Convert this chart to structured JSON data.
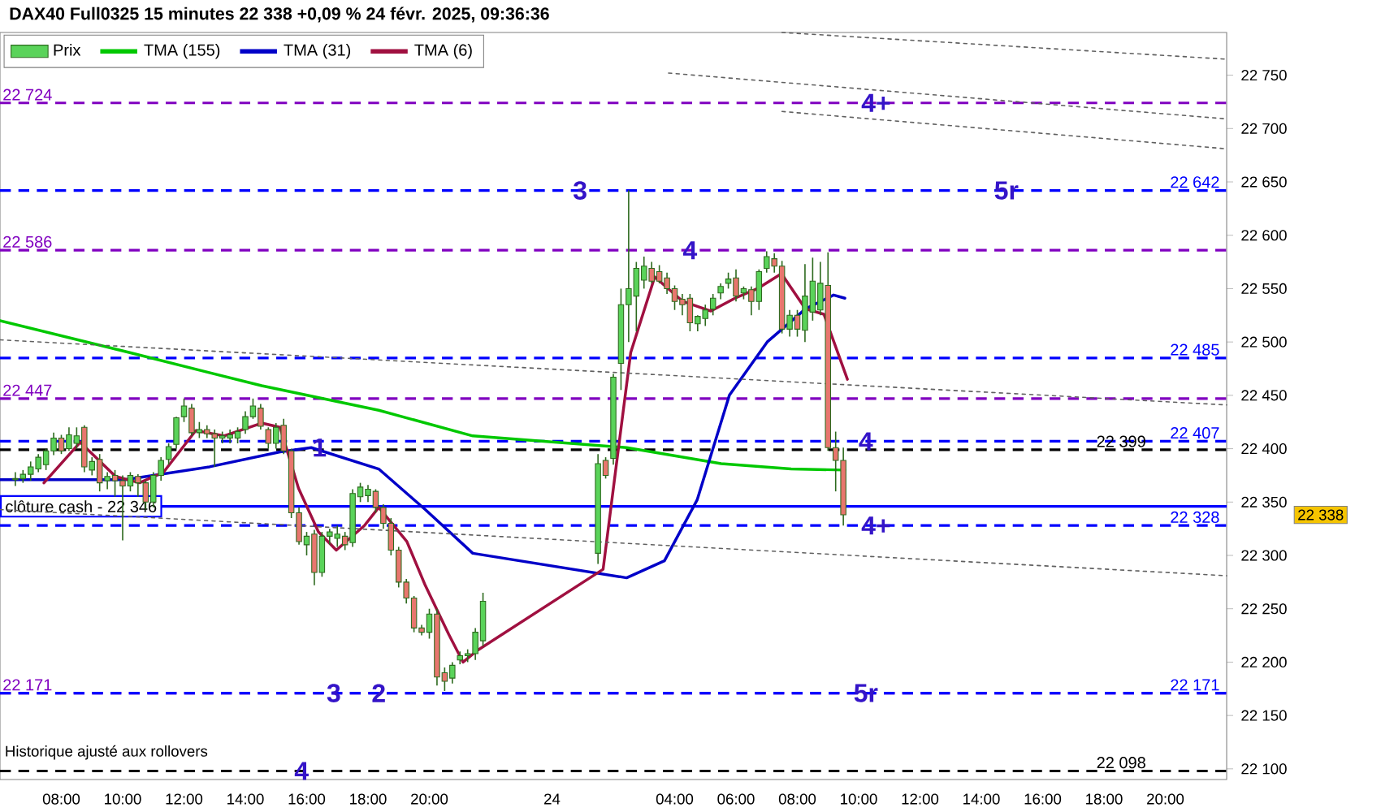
{
  "chart_data": {
    "type": "candlestick",
    "title": "DAX40 Full0325 15 minutes 22 338 +0,09 % 24 févr. 2025, 09:36:36",
    "legend": "top left",
    "xlim": [
      "2025-02-23T06:00",
      "2025-02-24T22:00"
    ],
    "ylim": [
      22090,
      22790
    ],
    "xticks": [
      {
        "value": "2025-02-23T08:00",
        "label": "08:00"
      },
      {
        "value": "2025-02-23T10:00",
        "label": "10:00"
      },
      {
        "value": "2025-02-23T12:00",
        "label": "12:00"
      },
      {
        "value": "2025-02-23T14:00",
        "label": "14:00"
      },
      {
        "value": "2025-02-23T16:00",
        "label": "16:00"
      },
      {
        "value": "2025-02-23T18:00",
        "label": "18:00"
      },
      {
        "value": "2025-02-23T20:00",
        "label": "20:00"
      },
      {
        "value": "2025-02-24T00:00",
        "label": "24"
      },
      {
        "value": "2025-02-24T04:00",
        "label": "04:00"
      },
      {
        "value": "2025-02-24T06:00",
        "label": "06:00"
      },
      {
        "value": "2025-02-24T08:00",
        "label": "08:00"
      },
      {
        "value": "2025-02-24T10:00",
        "label": "10:00"
      },
      {
        "value": "2025-02-24T12:00",
        "label": "12:00"
      },
      {
        "value": "2025-02-24T14:00",
        "label": "14:00"
      },
      {
        "value": "2025-02-24T16:00",
        "label": "16:00"
      },
      {
        "value": "2025-02-24T18:00",
        "label": "18:00"
      },
      {
        "value": "2025-02-24T20:00",
        "label": "20:00"
      }
    ],
    "yticks": [
      {
        "value": 22100,
        "label": "22 100"
      },
      {
        "value": 22150,
        "label": "22 150"
      },
      {
        "value": 22200,
        "label": "22 200"
      },
      {
        "value": 22250,
        "label": "22 250"
      },
      {
        "value": 22300,
        "label": "22 300"
      },
      {
        "value": 22350,
        "label": "22 350"
      },
      {
        "value": 22400,
        "label": "22 400"
      },
      {
        "value": 22450,
        "label": "22 450"
      },
      {
        "value": 22500,
        "label": "22 500"
      },
      {
        "value": 22550,
        "label": "22 550"
      },
      {
        "value": 22600,
        "label": "22 600"
      },
      {
        "value": 22650,
        "label": "22 650"
      },
      {
        "value": 22700,
        "label": "22 700"
      },
      {
        "value": 22750,
        "label": "22 750"
      }
    ],
    "series": [
      {
        "name": "Prix",
        "x": [
          "2025-02-23T06:30",
          "2025-02-23T06:45",
          "2025-02-23T07:00",
          "2025-02-23T07:15",
          "2025-02-23T07:30",
          "2025-02-23T07:45",
          "2025-02-23T08:00",
          "2025-02-23T08:15",
          "2025-02-23T08:30",
          "2025-02-23T08:45",
          "2025-02-23T09:00",
          "2025-02-23T09:15",
          "2025-02-23T09:30",
          "2025-02-23T09:45",
          "2025-02-23T10:00",
          "2025-02-23T10:15",
          "2025-02-23T10:30",
          "2025-02-23T10:45",
          "2025-02-23T11:00",
          "2025-02-23T11:15",
          "2025-02-23T11:30",
          "2025-02-23T11:45",
          "2025-02-23T12:00",
          "2025-02-23T12:15",
          "2025-02-23T12:30",
          "2025-02-23T12:45",
          "2025-02-23T13:00",
          "2025-02-23T13:15",
          "2025-02-23T13:30",
          "2025-02-23T13:45",
          "2025-02-23T14:00",
          "2025-02-23T14:15",
          "2025-02-23T14:30",
          "2025-02-23T14:45",
          "2025-02-23T15:00",
          "2025-02-23T15:15",
          "2025-02-23T15:30",
          "2025-02-23T15:45",
          "2025-02-23T16:00",
          "2025-02-23T16:15",
          "2025-02-23T16:30",
          "2025-02-23T16:45",
          "2025-02-23T17:00",
          "2025-02-23T17:15",
          "2025-02-23T17:30",
          "2025-02-23T17:45",
          "2025-02-23T18:00",
          "2025-02-23T18:15",
          "2025-02-23T18:30",
          "2025-02-23T18:45",
          "2025-02-23T19:00",
          "2025-02-23T19:15",
          "2025-02-23T19:30",
          "2025-02-23T19:45",
          "2025-02-23T20:00",
          "2025-02-23T20:15",
          "2025-02-23T20:30",
          "2025-02-23T20:45",
          "2025-02-23T21:00",
          "2025-02-23T21:15",
          "2025-02-23T21:30",
          "2025-02-23T21:45",
          "2025-02-24T01:30",
          "2025-02-24T01:45",
          "2025-02-24T02:00",
          "2025-02-24T02:15",
          "2025-02-24T02:30",
          "2025-02-24T02:45",
          "2025-02-24T03:00",
          "2025-02-24T03:15",
          "2025-02-24T03:30",
          "2025-02-24T03:45",
          "2025-02-24T04:00",
          "2025-02-24T04:15",
          "2025-02-24T04:30",
          "2025-02-24T04:45",
          "2025-02-24T05:00",
          "2025-02-24T05:15",
          "2025-02-24T05:30",
          "2025-02-24T05:45",
          "2025-02-24T06:00",
          "2025-02-24T06:15",
          "2025-02-24T06:30",
          "2025-02-24T06:45",
          "2025-02-24T07:00",
          "2025-02-24T07:15",
          "2025-02-24T07:30",
          "2025-02-24T07:45",
          "2025-02-24T08:00",
          "2025-02-24T08:15",
          "2025-02-24T08:30",
          "2025-02-24T08:45",
          "2025-02-24T09:00",
          "2025-02-24T09:15",
          "2025-02-24T09:30"
        ],
        "ohlc": [
          [
            22371,
            22378,
            22365,
            22372
          ],
          [
            22372,
            22380,
            22368,
            22376
          ],
          [
            22376,
            22388,
            22370,
            22383
          ],
          [
            22381,
            22395,
            22378,
            22392
          ],
          [
            22385,
            22400,
            22380,
            22398
          ],
          [
            22398,
            22415,
            22394,
            22410
          ],
          [
            22410,
            22413,
            22395,
            22398
          ],
          [
            22400,
            22420,
            22398,
            22413
          ],
          [
            22405,
            22420,
            22400,
            22412
          ],
          [
            22420,
            22422,
            22378,
            22383
          ],
          [
            22380,
            22392,
            22375,
            22388
          ],
          [
            22390,
            22395,
            22360,
            22368
          ],
          [
            22370,
            22378,
            22362,
            22374
          ],
          [
            22375,
            22380,
            22355,
            22370
          ],
          [
            22370,
            22375,
            22314,
            22365
          ],
          [
            22365,
            22378,
            22360,
            22375
          ],
          [
            22374,
            22376,
            22355,
            22368
          ],
          [
            22368,
            22370,
            22343,
            22350
          ],
          [
            22350,
            22378,
            22345,
            22375
          ],
          [
            22375,
            22392,
            22370,
            22389
          ],
          [
            22390,
            22405,
            22385,
            22402
          ],
          [
            22404,
            22430,
            22400,
            22429
          ],
          [
            22430,
            22447,
            22425,
            22440
          ],
          [
            22438,
            22442,
            22412,
            22415
          ],
          [
            22415,
            22425,
            22410,
            22418
          ],
          [
            22418,
            22422,
            22410,
            22414
          ],
          [
            22414,
            22418,
            22383,
            22410
          ],
          [
            22410,
            22416,
            22405,
            22412
          ],
          [
            22410,
            22418,
            22405,
            22413
          ],
          [
            22410,
            22420,
            22405,
            22416
          ],
          [
            22418,
            22435,
            22414,
            22430
          ],
          [
            22430,
            22447,
            22428,
            22440
          ],
          [
            22438,
            22442,
            22418,
            22421
          ],
          [
            22418,
            22420,
            22400,
            22405
          ],
          [
            22405,
            22424,
            22400,
            22420
          ],
          [
            22422,
            22428,
            22395,
            22398
          ],
          [
            22398,
            22400,
            22335,
            22340
          ],
          [
            22340,
            22345,
            22310,
            22313
          ],
          [
            22310,
            22322,
            22300,
            22318
          ],
          [
            22320,
            22324,
            22272,
            22284
          ],
          [
            22284,
            22322,
            22280,
            22318
          ],
          [
            22318,
            22325,
            22310,
            22322
          ],
          [
            22316,
            22328,
            22308,
            22320
          ],
          [
            22318,
            22322,
            22305,
            22310
          ],
          [
            22312,
            22362,
            22308,
            22358
          ],
          [
            22355,
            22368,
            22350,
            22364
          ],
          [
            22356,
            22366,
            22350,
            22362
          ],
          [
            22360,
            22362,
            22340,
            22345
          ],
          [
            22345,
            22348,
            22325,
            22330
          ],
          [
            22330,
            22335,
            22300,
            22305
          ],
          [
            22305,
            22308,
            22270,
            22275
          ],
          [
            22275,
            22278,
            22255,
            22260
          ],
          [
            22260,
            22262,
            22228,
            22232
          ],
          [
            22232,
            22235,
            22225,
            22228
          ],
          [
            22228,
            22250,
            22222,
            22245
          ],
          [
            22245,
            22250,
            22178,
            22186
          ],
          [
            22190,
            22195,
            22173,
            22182
          ],
          [
            22185,
            22200,
            22180,
            22197
          ],
          [
            22202,
            22210,
            22198,
            22206
          ],
          [
            22206,
            22212,
            22200,
            22208
          ],
          [
            22208,
            22232,
            22202,
            22228
          ],
          [
            22220,
            22265,
            22215,
            22257
          ],
          [
            22302,
            22395,
            22292,
            22386
          ],
          [
            22389,
            22392,
            22372,
            22375
          ],
          [
            22391,
            22470,
            22385,
            22467
          ],
          [
            22480,
            22550,
            22455,
            22535
          ],
          [
            22535,
            22642,
            22500,
            22550
          ],
          [
            22543,
            22575,
            22510,
            22569
          ],
          [
            22558,
            22580,
            22550,
            22571
          ],
          [
            22569,
            22575,
            22555,
            22557
          ],
          [
            22566,
            22572,
            22555,
            22557
          ],
          [
            22560,
            22565,
            22545,
            22550
          ],
          [
            22550,
            22553,
            22530,
            22538
          ],
          [
            22540,
            22545,
            22525,
            22535
          ],
          [
            22541,
            22545,
            22510,
            22518
          ],
          [
            22517,
            22525,
            22510,
            22524
          ],
          [
            22522,
            22535,
            22515,
            22530
          ],
          [
            22531,
            22545,
            22525,
            22541
          ],
          [
            22546,
            22555,
            22540,
            22552
          ],
          [
            22555,
            22565,
            22550,
            22559
          ],
          [
            22560,
            22568,
            22538,
            22543
          ],
          [
            22546,
            22552,
            22540,
            22550
          ],
          [
            22549,
            22552,
            22525,
            22538
          ],
          [
            22538,
            22568,
            22530,
            22566
          ],
          [
            22569,
            22585,
            22565,
            22580
          ],
          [
            22578,
            22583,
            22565,
            22571
          ],
          [
            22571,
            22576,
            22508,
            22512
          ],
          [
            22512,
            22530,
            22505,
            22525
          ],
          [
            22525,
            22530,
            22505,
            22512
          ],
          [
            22511,
            22573,
            22500,
            22543
          ],
          [
            22528,
            22579,
            22520,
            22557
          ],
          [
            22530,
            22575,
            22525,
            22555
          ],
          [
            22553,
            22584,
            22398,
            22401
          ],
          [
            22401,
            22416,
            22360,
            22389
          ],
          [
            22389,
            22401,
            22328,
            22338
          ]
        ]
      },
      {
        "name": "TMA (155)",
        "type": "line",
        "color": "#00c800",
        "x": [
          "2025-02-23T06:00",
          "2025-02-23T10:14",
          "2025-02-23T14:32",
          "2025-02-23T18:21",
          "2025-02-23T21:25",
          "2025-02-24T02:26",
          "2025-02-24T05:31",
          "2025-02-24T07:48",
          "2025-02-24T09:33"
        ],
        "values": [
          22520,
          22490,
          22459,
          22436,
          22412,
          22401,
          22386,
          22381,
          22380
        ]
      },
      {
        "name": "TMA (31)",
        "type": "line",
        "color": "#0000c8",
        "x": [
          "2025-02-23T06:00",
          "2025-02-23T10:05",
          "2025-02-23T12:50",
          "2025-02-23T15:08",
          "2025-02-23T16:09",
          "2025-02-23T18:21",
          "2025-02-23T19:52",
          "2025-02-23T21:25",
          "2025-02-24T02:26",
          "2025-02-24T03:40",
          "2025-02-24T04:44",
          "2025-02-24T05:47",
          "2025-02-24T07:01",
          "2025-02-24T08:16",
          "2025-02-24T09:11",
          "2025-02-24T09:33"
        ],
        "values": [
          22371,
          22371,
          22383,
          22397,
          22401,
          22381,
          22343,
          22302,
          22279,
          22295,
          22352,
          22450,
          22500,
          22531,
          22544,
          22541
        ]
      },
      {
        "name": "TMA (6)",
        "type": "line",
        "color": "#a01040",
        "x": [
          "2025-02-23T07:26",
          "2025-02-23T08:37",
          "2025-02-23T09:46",
          "2025-02-23T10:33",
          "2025-02-23T11:20",
          "2025-02-23T12:23",
          "2025-02-23T13:18",
          "2025-02-23T14:32",
          "2025-02-23T15:08",
          "2025-02-23T15:44",
          "2025-02-23T16:23",
          "2025-02-23T16:58",
          "2025-02-23T17:53",
          "2025-02-23T18:21",
          "2025-02-23T19:16",
          "2025-02-23T19:52",
          "2025-02-23T20:38",
          "2025-02-23T21:06",
          "2025-02-23T21:34",
          "2025-02-24T01:40",
          "2025-02-24T02:07",
          "2025-02-24T02:34",
          "2025-02-24T03:21",
          "2025-02-24T04:16",
          "2025-02-24T05:11",
          "2025-02-24T05:58",
          "2025-02-24T06:42",
          "2025-02-24T07:29",
          "2025-02-24T08:16",
          "2025-02-24T08:52",
          "2025-02-24T09:38"
        ],
        "values": [
          22368,
          22406,
          22374,
          22368,
          22378,
          22417,
          22412,
          22424,
          22420,
          22363,
          22322,
          22305,
          22328,
          22345,
          22313,
          22272,
          22226,
          22200,
          22211,
          22287,
          22389,
          22490,
          22561,
          22538,
          22529,
          22541,
          22550,
          22564,
          22531,
          22526,
          22465
        ]
      },
      {
        "type": "line",
        "color": "#606060",
        "line_style": "dotted",
        "x": [
          "2025-02-24T07:30",
          "2025-02-24T22:00"
        ],
        "values": [
          22790,
          22765
        ]
      },
      {
        "type": "line",
        "color": "#606060",
        "line_style": "dotted",
        "x": [
          "2025-02-24T03:48",
          "2025-02-24T22:00"
        ],
        "values": [
          22752,
          22709
        ]
      },
      {
        "type": "line",
        "color": "#606060",
        "line_style": "dotted",
        "x": [
          "2025-02-24T07:30",
          "2025-02-24T22:00"
        ],
        "values": [
          22716,
          22681
        ]
      },
      {
        "type": "line",
        "color": "#606060",
        "line_style": "dotted",
        "x": [
          "2025-02-23T06:00",
          "2025-02-24T22:00"
        ],
        "values": [
          22502,
          22441
        ]
      },
      {
        "type": "line",
        "color": "#606060",
        "line_style": "dotted",
        "x": [
          "2025-02-23T06:00",
          "2025-02-24T22:00"
        ],
        "values": [
          22343,
          22281
        ]
      }
    ],
    "ref_lines": [
      {
        "axis": "y",
        "value": 22724,
        "label": "22 724",
        "color": "#8000c0",
        "line_style": "dashed"
      },
      {
        "axis": "y",
        "value": 22642,
        "label": "22 642",
        "color": "#0000ff",
        "line_style": "dashed"
      },
      {
        "axis": "y",
        "value": 22586,
        "label": "22 586",
        "color": "#8000c0",
        "line_style": "dashed"
      },
      {
        "axis": "y",
        "value": 22485,
        "label": "22 485",
        "color": "#0000ff",
        "line_style": "dashed"
      },
      {
        "axis": "y",
        "value": 22447,
        "label": "22 447",
        "color": "#8000c0",
        "line_style": "dashed"
      },
      {
        "axis": "y",
        "value": 22407,
        "label": "22 407",
        "color": "#0000ff",
        "line_style": "dashed"
      },
      {
        "axis": "y",
        "value": 22399,
        "label": "22 399",
        "color": "#000000",
        "line_style": "dashed"
      },
      {
        "axis": "y",
        "value": 22346,
        "label": "clôture cash -  22 346",
        "color": "#0000ff",
        "line_style": "solid"
      },
      {
        "axis": "y",
        "value": 22328,
        "label": "22 328",
        "color": "#0000ff",
        "line_style": "dashed"
      },
      {
        "axis": "y",
        "value": 22171,
        "label": "22 171",
        "color": "#8000c0",
        "line_style": "dashed"
      },
      {
        "axis": "y",
        "value": 22171,
        "label": "22 171",
        "color": "#0000ff",
        "line_style": "dashed"
      },
      {
        "axis": "y",
        "value": 22098,
        "label": "22 098",
        "color": "#000000",
        "line_style": "dashed"
      }
    ],
    "annotations": [
      {
        "text": "1",
        "x": "2025-02-23T16:25",
        "y": 22401
      },
      {
        "text": "2",
        "x": "2025-02-23T18:21",
        "y": 22171
      },
      {
        "text": "3",
        "x": "2025-02-23T16:53",
        "y": 22171
      },
      {
        "text": "3",
        "x": "2025-02-24T00:55",
        "y": 22642
      },
      {
        "text": "4",
        "x": "2025-02-24T04:30",
        "y": 22586
      },
      {
        "text": "4+",
        "x": "2025-02-24T10:34",
        "y": 22724
      },
      {
        "text": "5r",
        "x": "2025-02-24T14:49",
        "y": 22642
      },
      {
        "text": "4",
        "x": "2025-02-24T10:14",
        "y": 22407
      },
      {
        "text": "4+",
        "x": "2025-02-24T10:34",
        "y": 22328
      },
      {
        "text": "5r",
        "x": "2025-02-24T10:14",
        "y": 22171
      },
      {
        "text": "4",
        "x": "2025-02-23T15:50",
        "y": 22098
      },
      "Historique ajusté aux rollovers",
      "22 338"
    ]
  }
}
